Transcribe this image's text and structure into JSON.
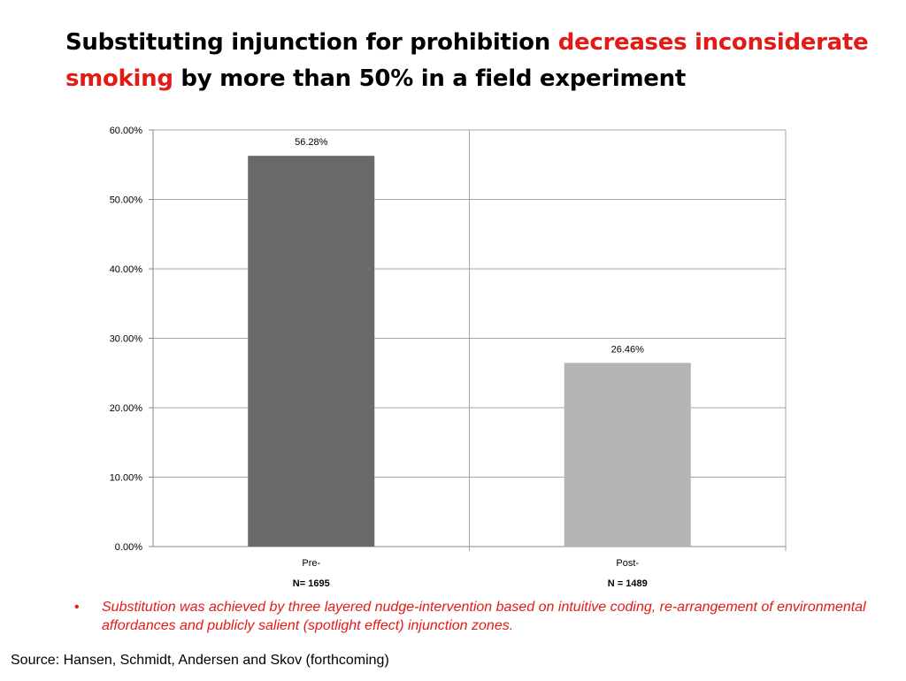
{
  "title": {
    "part1": "Substituting injunction for prohibition ",
    "highlight1": "decreases inconsiderate",
    "highlight2": "smoking",
    "part2": " by more than 50% in a field experiment",
    "highlight_color": "#e31b17"
  },
  "chart_data": {
    "type": "bar",
    "categories": [
      "Pre-",
      "Post-"
    ],
    "category_sublabels": [
      "N= 1695",
      "N = 1489"
    ],
    "values": [
      56.28,
      26.46
    ],
    "data_labels": [
      "56.28%",
      "26.46%"
    ],
    "bar_colors": [
      "#696969",
      "#b4b4b4"
    ],
    "ylim": [
      0,
      60
    ],
    "yticks": [
      0,
      10,
      20,
      30,
      40,
      50,
      60
    ],
    "ytick_labels": [
      "0.00%",
      "10.00%",
      "20.00%",
      "30.00%",
      "40.00%",
      "50.00%",
      "60.00%"
    ],
    "grid": true,
    "title": "",
    "xlabel": "",
    "ylabel": ""
  },
  "bullet": {
    "marker": "•",
    "text": "Substitution was achieved by three layered nudge-intervention based on intuitive coding, re-arrangement of environmental affordances and publicly salient (spotlight effect) injunction zones."
  },
  "source": "Source: Hansen, Schmidt, Andersen and Skov (forthcoming)"
}
